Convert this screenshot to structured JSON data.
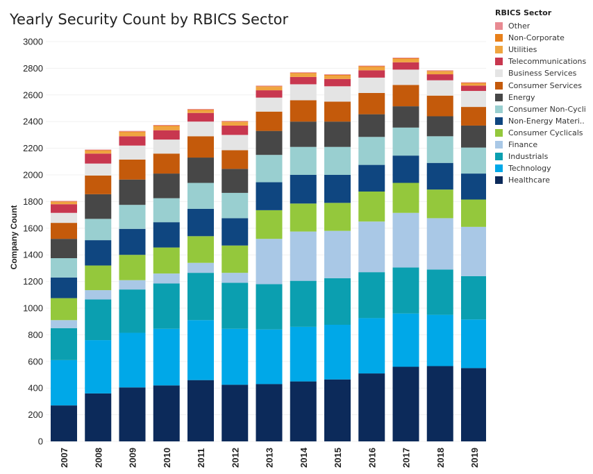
{
  "chart_data": {
    "type": "bar",
    "stacked": true,
    "title": "Yearly Security Count by RBICS Sector",
    "xlabel": "",
    "ylabel": "Company Count",
    "ylim": [
      0,
      3000
    ],
    "yticks": [
      0,
      200,
      400,
      600,
      800,
      1000,
      1200,
      1400,
      1600,
      1800,
      2000,
      2200,
      2400,
      2600,
      2800,
      3000
    ],
    "categories": [
      "2007",
      "2008",
      "2009",
      "2010",
      "2011",
      "2012",
      "2013",
      "2014",
      "2015",
      "2016",
      "2017",
      "2018",
      "2019"
    ],
    "legend_title": "RBICS Sector",
    "legend_position": "right",
    "series": [
      {
        "name": "Healthcare",
        "color": "#0c2a5a",
        "values": [
          270,
          360,
          405,
          420,
          460,
          425,
          430,
          450,
          465,
          510,
          560,
          565,
          550
        ]
      },
      {
        "name": "Technology",
        "color": "#00a8e8",
        "values": [
          340,
          400,
          410,
          425,
          450,
          420,
          410,
          410,
          410,
          415,
          400,
          385,
          365
        ]
      },
      {
        "name": "Industrials",
        "color": "#0b9fb0",
        "values": [
          240,
          305,
          325,
          340,
          355,
          345,
          340,
          345,
          350,
          345,
          345,
          340,
          325
        ]
      },
      {
        "name": "Finance",
        "color": "#a9c8e6",
        "values": [
          60,
          70,
          70,
          75,
          75,
          75,
          340,
          370,
          355,
          380,
          410,
          385,
          370
        ]
      },
      {
        "name": "Consumer Cyclicals",
        "color": "#94c83c",
        "values": [
          165,
          185,
          190,
          195,
          200,
          205,
          215,
          210,
          210,
          225,
          225,
          215,
          205
        ]
      },
      {
        "name": "Non-Energy Materi..",
        "color": "#0f4680",
        "values": [
          155,
          190,
          195,
          190,
          205,
          205,
          210,
          215,
          210,
          200,
          205,
          200,
          195
        ]
      },
      {
        "name": "Consumer Non-Cycli..",
        "color": "#99cfd0",
        "values": [
          145,
          160,
          180,
          180,
          195,
          190,
          205,
          210,
          210,
          210,
          210,
          200,
          195
        ]
      },
      {
        "name": "Energy",
        "color": "#474747",
        "values": [
          145,
          185,
          190,
          185,
          190,
          180,
          180,
          190,
          190,
          170,
          160,
          150,
          165
        ]
      },
      {
        "name": "Consumer Services",
        "color": "#c45a0b",
        "values": [
          120,
          140,
          150,
          150,
          160,
          140,
          145,
          160,
          150,
          160,
          160,
          155,
          140
        ]
      },
      {
        "name": "Business Services",
        "color": "#e4e4e4",
        "values": [
          75,
          90,
          105,
          105,
          110,
          115,
          105,
          120,
          115,
          115,
          115,
          115,
          120
        ]
      },
      {
        "name": "Telecommunications",
        "color": "#c8374f",
        "values": [
          65,
          75,
          70,
          70,
          65,
          70,
          55,
          55,
          55,
          55,
          55,
          45,
          40
        ]
      },
      {
        "name": "Utilities",
        "color": "#f0a540",
        "values": [
          15,
          20,
          30,
          30,
          20,
          25,
          25,
          25,
          25,
          25,
          25,
          20,
          15
        ]
      },
      {
        "name": "Non-Corporate",
        "color": "#e8801a",
        "values": [
          5,
          5,
          5,
          5,
          5,
          5,
          5,
          5,
          5,
          5,
          5,
          5,
          5
        ]
      },
      {
        "name": "Other",
        "color": "#e88a92",
        "values": [
          5,
          5,
          5,
          5,
          5,
          5,
          5,
          5,
          5,
          5,
          5,
          5,
          5
        ]
      }
    ]
  }
}
